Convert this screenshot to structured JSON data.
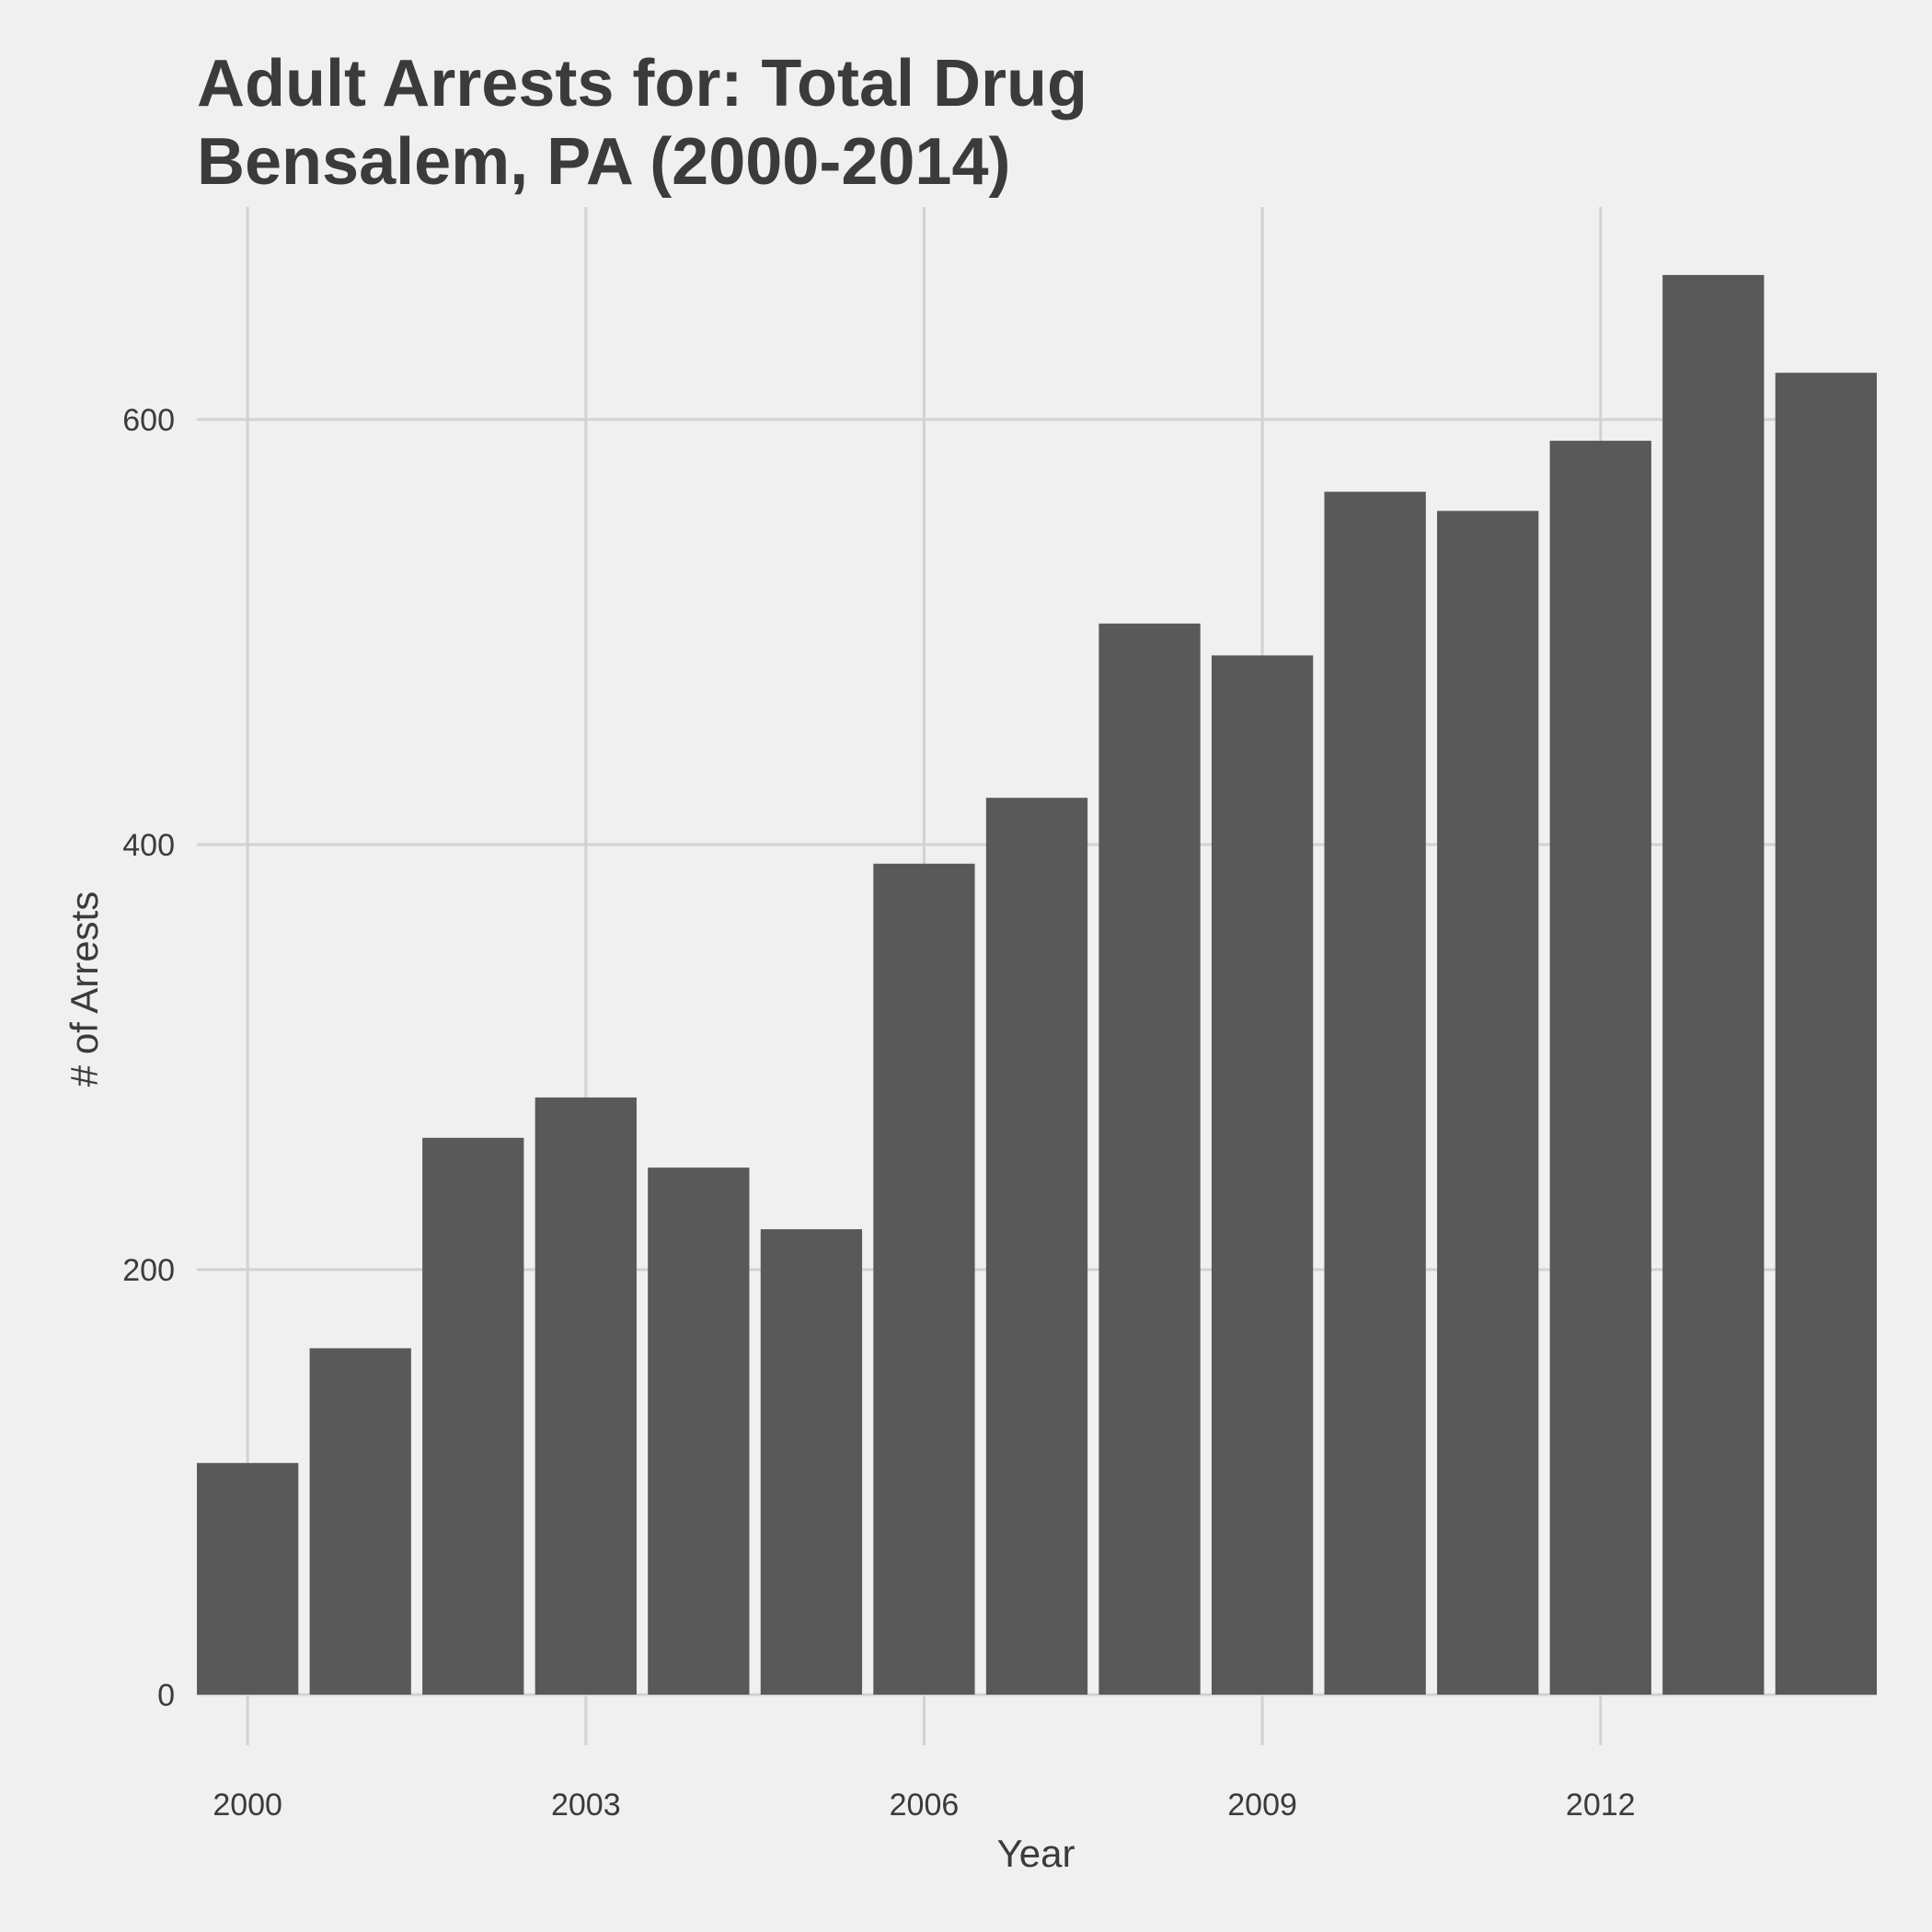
{
  "chart_data": {
    "type": "bar",
    "title": "Adult Arrests for: Total Drug",
    "subtitle": "Bensalem, PA (2000-2014)",
    "xlabel": "Year",
    "ylabel": "# of Arrests",
    "categories": [
      2000,
      2001,
      2002,
      2003,
      2004,
      2005,
      2006,
      2007,
      2008,
      2009,
      2010,
      2011,
      2012,
      2013,
      2014
    ],
    "values": [
      109,
      163,
      262,
      281,
      248,
      219,
      391,
      422,
      504,
      489,
      566,
      557,
      590,
      668,
      622
    ],
    "xticks": [
      2000,
      2003,
      2006,
      2009,
      2012
    ],
    "yticks": [
      0,
      200,
      400,
      600
    ],
    "xlim": [
      1999.55,
      2014.45
    ],
    "ylim": [
      0,
      700
    ],
    "grid": true,
    "legend": "none",
    "colors": {
      "bar": "#595959",
      "background": "#f0f0f0",
      "grid": "#d2d2d2",
      "text": "#3b3b3b"
    }
  }
}
